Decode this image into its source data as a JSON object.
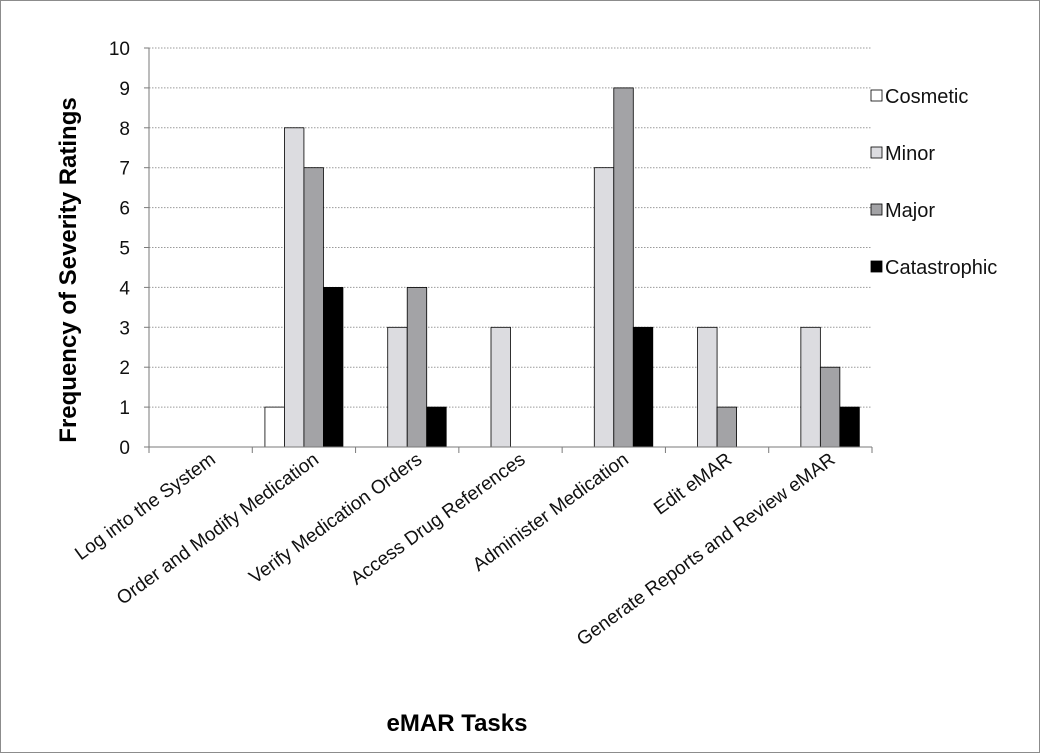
{
  "chart_data": {
    "type": "bar",
    "title": "",
    "xlabel": "eMAR Tasks",
    "ylabel": "Frequency of Severity Ratings",
    "ylim": [
      0,
      10
    ],
    "yticks": [
      "0",
      "1",
      "2",
      "3",
      "4",
      "5",
      "6",
      "7",
      "8",
      "9",
      "10"
    ],
    "grid": true,
    "legend_position": "right",
    "categories": [
      "Log into the System",
      "Order and Modify Medication",
      "Verify Medication Orders",
      "Access Drug References",
      "Administer Medication",
      "Edit eMAR",
      "Generate Reports and Review eMAR"
    ],
    "series": [
      {
        "name": "Cosmetic",
        "color": "#ffffff",
        "values": [
          0,
          1,
          0,
          0,
          0,
          0,
          0
        ]
      },
      {
        "name": "Minor",
        "color": "#dcdce0",
        "values": [
          0,
          8,
          3,
          3,
          7,
          3,
          3
        ]
      },
      {
        "name": "Major",
        "color": "#a3a3a6",
        "values": [
          0,
          7,
          4,
          0,
          9,
          1,
          2
        ]
      },
      {
        "name": "Catastrophic",
        "color": "#000000",
        "values": [
          0,
          4,
          1,
          0,
          3,
          0,
          1
        ]
      }
    ]
  }
}
